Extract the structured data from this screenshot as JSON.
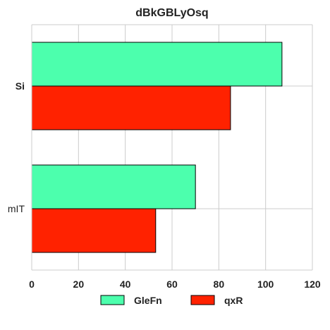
{
  "chart_data": {
    "type": "bar",
    "orientation": "horizontal",
    "title": "dBkGBLyOsq",
    "xlabel": "",
    "ylabel": "",
    "categories": [
      "Si",
      "mIT"
    ],
    "series": [
      {
        "name": "GleFn",
        "color": "#4cffad",
        "values": [
          107,
          70
        ]
      },
      {
        "name": "qxR",
        "color": "#ff2200",
        "values": [
          85,
          53
        ]
      }
    ],
    "xlim": [
      0,
      120
    ],
    "xticks": [
      "0",
      "20",
      "40",
      "60",
      "80",
      "100",
      "120"
    ],
    "grid": true,
    "legend_position": "bottom"
  }
}
